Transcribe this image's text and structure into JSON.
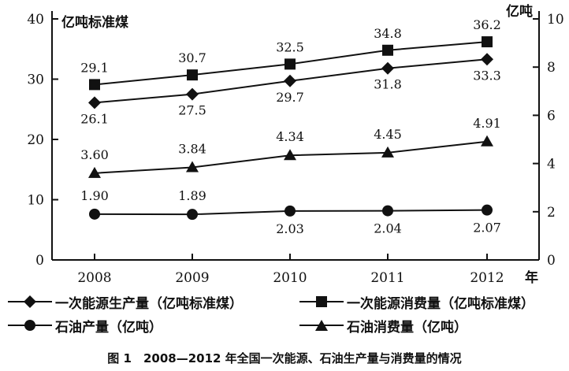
{
  "chart_data": {
    "type": "line",
    "categories": [
      "2008",
      "2009",
      "2010",
      "2011",
      "2012"
    ],
    "x_axis_unit": "年",
    "left_axis": {
      "unit_label": "亿吨标准煤",
      "ylim": [
        0,
        40
      ],
      "ticks": [
        "0",
        "10",
        "20",
        "30",
        "40"
      ]
    },
    "right_axis": {
      "unit_label": "亿吨",
      "ylim": [
        0,
        10
      ],
      "ticks": [
        "0",
        "2",
        "4",
        "6",
        "8",
        "10"
      ]
    },
    "series": [
      {
        "name": "一次能源生产量（亿吨标准煤）",
        "axis": "left",
        "marker": "diamond",
        "values": [
          26.1,
          27.5,
          29.7,
          31.8,
          33.3
        ],
        "labels": [
          "26.1",
          "27.5",
          "29.7",
          "31.8",
          "33.3"
        ]
      },
      {
        "name": "一次能源消费量（亿吨标准煤）",
        "axis": "left",
        "marker": "square",
        "values": [
          29.1,
          30.7,
          32.5,
          34.8,
          36.2
        ],
        "labels": [
          "29.1",
          "30.7",
          "32.5",
          "34.8",
          "36.2"
        ]
      },
      {
        "name": "石油产量（亿吨）",
        "axis": "right",
        "marker": "circle",
        "values": [
          1.9,
          1.89,
          2.03,
          2.04,
          2.07
        ],
        "labels": [
          "1.90",
          "1.89",
          "2.03",
          "2.04",
          "2.07"
        ]
      },
      {
        "name": "石油消费量（亿吨）",
        "axis": "right",
        "marker": "triangle",
        "values": [
          3.6,
          3.84,
          4.34,
          4.45,
          4.91
        ],
        "labels": [
          "3.60",
          "3.84",
          "4.34",
          "4.45",
          "4.91"
        ]
      }
    ],
    "grid": false,
    "legend_position": "bottom"
  },
  "caption": "图 1　2008—2012 年全国一次能源、石油生产量与消费量的情况",
  "colors": {
    "ink": "#111111",
    "background": "#ffffff"
  }
}
